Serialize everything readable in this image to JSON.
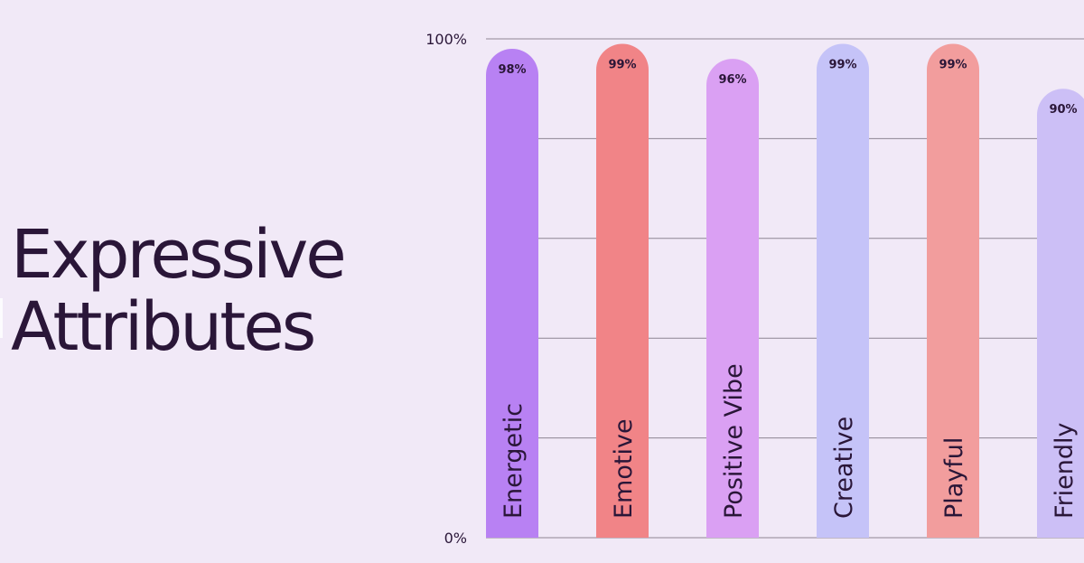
{
  "headline": {
    "line1": "Expressive",
    "line2": "Attributes"
  },
  "colors": {
    "background": "#f1e9f7",
    "text": "#2a1638",
    "gridline": "#8e8593"
  },
  "chart_data": {
    "type": "bar",
    "categories": [
      "Energetic",
      "Emotive",
      "Positive Vibe",
      "Creative",
      "Playful",
      "Friendly"
    ],
    "values": [
      98,
      99,
      96,
      99,
      99,
      90
    ],
    "value_labels": [
      "98%",
      "99%",
      "96%",
      "99%",
      "99%",
      "90%"
    ],
    "bar_colors": [
      "#b881f3",
      "#f18487",
      "#daa0f3",
      "#c5c3f8",
      "#f29d9d",
      "#ccbff6"
    ],
    "yticks": [
      "100%",
      "0%"
    ],
    "ylim": [
      0,
      100
    ],
    "grid": true,
    "gridline_count": 6,
    "legend": "none",
    "title": "",
    "xlabel": "",
    "ylabel": ""
  }
}
